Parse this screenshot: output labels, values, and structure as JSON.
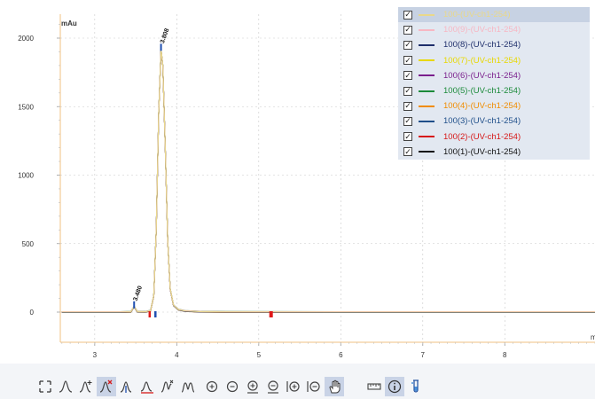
{
  "chart_data": {
    "type": "line",
    "ylabel": "mAu",
    "xlabel": "m",
    "xlim": [
      2.58,
      9.1
    ],
    "ylim": [
      -90,
      2150
    ],
    "xticks": [
      3,
      4,
      5,
      6,
      7,
      8
    ],
    "yticks": [
      0,
      500,
      1000,
      1500,
      2000
    ],
    "grid": true,
    "legend_placement": "top-right",
    "peaks": [
      {
        "time": 3.48,
        "label": "3.480",
        "height": 40
      },
      {
        "time": 3.808,
        "label": "3.808",
        "height": 1920
      }
    ],
    "integration_markers": [
      3.67,
      3.74,
      5.15
    ],
    "series": [
      {
        "name": "100-(UV-ch1-254)",
        "color": "#e9d88a",
        "visible": true
      },
      {
        "name": "100(9)-(UV-ch1-254)",
        "color": "#f7b7c3",
        "visible": true
      },
      {
        "name": "100(8)-(UV-ch1-254)",
        "color": "#1f2f6b",
        "visible": true
      },
      {
        "name": "100(7)-(UV-ch1-254)",
        "color": "#e8d800",
        "visible": true
      },
      {
        "name": "100(6)-(UV-ch1-254)",
        "color": "#7a1f8c",
        "visible": true
      },
      {
        "name": "100(5)-(UV-ch1-254)",
        "color": "#1b8a3a",
        "visible": true
      },
      {
        "name": "100(4)-(UV-ch1-254)",
        "color": "#f08c00",
        "visible": true
      },
      {
        "name": "100(3)-(UV-ch1-254)",
        "color": "#1f4f8a",
        "visible": true
      },
      {
        "name": "100(2)-(UV-ch1-254)",
        "color": "#d61818",
        "visible": true
      },
      {
        "name": "100(1)-(UV-ch1-254)",
        "color": "#111111",
        "visible": true
      }
    ],
    "trace_points": [
      [
        2.6,
        0
      ],
      [
        3.3,
        0
      ],
      [
        3.44,
        2
      ],
      [
        3.48,
        40
      ],
      [
        3.52,
        3
      ],
      [
        3.62,
        2
      ],
      [
        3.68,
        10
      ],
      [
        3.72,
        120
      ],
      [
        3.75,
        600
      ],
      [
        3.78,
        1450
      ],
      [
        3.808,
        1920
      ],
      [
        3.83,
        1800
      ],
      [
        3.86,
        1200
      ],
      [
        3.89,
        520
      ],
      [
        3.92,
        170
      ],
      [
        3.96,
        50
      ],
      [
        4.02,
        18
      ],
      [
        4.1,
        8
      ],
      [
        4.3,
        3
      ],
      [
        4.6,
        1
      ],
      [
        6.0,
        0
      ],
      [
        9.1,
        0
      ]
    ]
  },
  "legend": {
    "items": [
      {
        "label": "100-(UV-ch1-254)",
        "color": "#e9d88a",
        "checked": true,
        "selected": true
      },
      {
        "label": "100(9)-(UV-ch1-254)",
        "color": "#f7b7c3",
        "checked": true
      },
      {
        "label": "100(8)-(UV-ch1-254)",
        "color": "#1f2f6b",
        "checked": true
      },
      {
        "label": "100(7)-(UV-ch1-254)",
        "color": "#e8d800",
        "checked": true
      },
      {
        "label": "100(6)-(UV-ch1-254)",
        "color": "#7a1f8c",
        "checked": true
      },
      {
        "label": "100(5)-(UV-ch1-254)",
        "color": "#1b8a3a",
        "checked": true
      },
      {
        "label": "100(4)-(UV-ch1-254)",
        "color": "#f08c00",
        "checked": true
      },
      {
        "label": "100(3)-(UV-ch1-254)",
        "color": "#1f4f8a",
        "checked": true
      },
      {
        "label": "100(2)-(UV-ch1-254)",
        "color": "#d61818",
        "checked": true
      },
      {
        "label": "100(1)-(UV-ch1-254)",
        "color": "#111111",
        "checked": true
      }
    ]
  },
  "toolbar": {
    "buttons": [
      {
        "name": "fit-all-icon",
        "active": false
      },
      {
        "name": "peak-icon",
        "active": false
      },
      {
        "name": "add-peak-icon",
        "active": false
      },
      {
        "name": "delete-peak-icon",
        "active": true
      },
      {
        "name": "split-peak-icon",
        "active": false
      },
      {
        "name": "baseline-peak-icon",
        "active": false
      },
      {
        "name": "skim-peak-icon",
        "active": false
      },
      {
        "name": "valley-peak-icon",
        "active": false
      },
      {
        "name": "zoom-in-icon",
        "active": false
      },
      {
        "name": "zoom-out-icon",
        "active": false
      },
      {
        "name": "zoom-in-x-icon",
        "active": false
      },
      {
        "name": "zoom-out-x-icon",
        "active": false
      },
      {
        "name": "zoom-in-y-icon",
        "active": false
      },
      {
        "name": "zoom-out-y-icon",
        "active": false
      },
      {
        "name": "pan-hand-icon",
        "active": true
      },
      {
        "name": "measure-ruler-icon",
        "active": false
      },
      {
        "name": "info-icon",
        "active": true
      },
      {
        "name": "sample-tube-icon",
        "active": false
      }
    ]
  }
}
